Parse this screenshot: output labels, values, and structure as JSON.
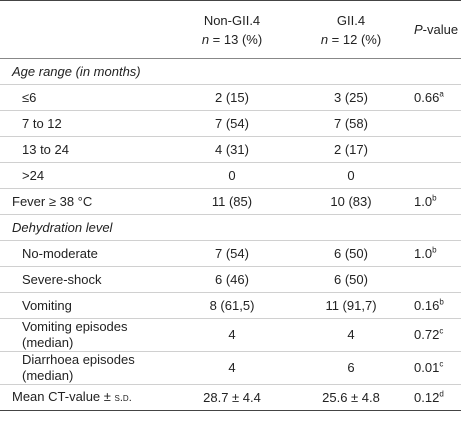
{
  "header": {
    "columns": [
      {
        "line1": "Non-GII.4",
        "n": "n",
        "rest": " = 13 (%)"
      },
      {
        "line1": "GII.4",
        "n": "n",
        "rest": " = 12 (%)"
      }
    ],
    "p_italic": "P",
    "p_rest": "-value"
  },
  "body": [
    {
      "section": "Age range (in months)",
      "rows": [
        {
          "label": "≤6",
          "values": [
            "2 (15)",
            "3 (25)"
          ],
          "p": "0.66",
          "p_note": "a"
        },
        {
          "label": "7 to 12",
          "values": [
            "7 (54)",
            "7 (58)"
          ]
        },
        {
          "label": "13 to 24",
          "values": [
            "4 (31)",
            "2 (17)"
          ]
        },
        {
          "label": ">24",
          "values": [
            "0",
            "0"
          ]
        }
      ]
    },
    {
      "label": "Fever ≥ 38 °C",
      "values": [
        "11 (85)",
        "10 (83)"
      ],
      "p": "1.0",
      "p_note": "b"
    },
    {
      "section": "Dehydration level",
      "rows": [
        {
          "label": "No-moderate",
          "values": [
            "7 (54)",
            "6 (50)"
          ],
          "p": "1.0",
          "p_note": "b"
        },
        {
          "label": "Severe-shock",
          "values": [
            "6 (46)",
            "6 (50)"
          ]
        },
        {
          "label": "Vomiting",
          "values": [
            "8 (61,5)",
            "11 (91,7)"
          ],
          "p": "0.16",
          "p_note": "b"
        },
        {
          "label": "Vomiting episodes (median)",
          "values": [
            "4",
            "4"
          ],
          "p": "0.72",
          "p_note": "c"
        },
        {
          "label": "Diarrhoea episodes (median)",
          "values": [
            "4",
            "6"
          ],
          "p": "0.01",
          "p_note": "c"
        }
      ]
    },
    {
      "label": "Mean CT-value ±",
      "label_smallcaps": "s.d.",
      "values": [
        "28.7 ± 4.4",
        "25.6 ± 4.8"
      ],
      "p": "0.12",
      "p_note": "d"
    }
  ]
}
